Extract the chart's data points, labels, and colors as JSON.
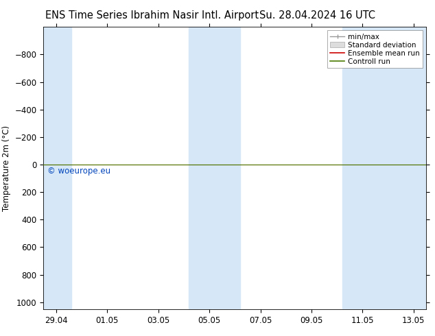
{
  "title_left": "ENS Time Series Ibrahim Nasir Intl. Airport",
  "title_right": "Su. 28.04.2024 16 UTC",
  "ylabel": "Temperature 2m (°C)",
  "watermark": "© woeurope.eu",
  "ylim_bottom": 1050,
  "ylim_top": -1000,
  "yticks": [
    -800,
    -600,
    -400,
    -200,
    0,
    200,
    400,
    600,
    800,
    1000
  ],
  "x_tick_labels": [
    "29.04",
    "01.05",
    "03.05",
    "05.05",
    "07.05",
    "09.05",
    "11.05",
    "13.05"
  ],
  "x_tick_positions": [
    0,
    2,
    4,
    6,
    8,
    10,
    12,
    14
  ],
  "shaded_bands": [
    {
      "xmin": -0.5,
      "xmax": 0.6
    },
    {
      "xmin": 5.2,
      "xmax": 7.2
    },
    {
      "xmin": 11.2,
      "xmax": 14.5
    }
  ],
  "shaded_color": "#d6e8f7",
  "line_y": 0,
  "line_color_green": "#4a7a00",
  "line_color_red": "#cc0000",
  "background_color": "#ffffff",
  "plot_bg_color": "#ffffff",
  "legend_items": [
    {
      "label": "min/max",
      "color": "#999999",
      "type": "errorbar"
    },
    {
      "label": "Standard deviation",
      "color": "#cccccc",
      "type": "bar"
    },
    {
      "label": "Ensemble mean run",
      "color": "#cc0000",
      "type": "line"
    },
    {
      "label": "Controll run",
      "color": "#4a7a00",
      "type": "line"
    }
  ],
  "x_min": -0.5,
  "x_max": 14.5,
  "font_size_title": 10.5,
  "font_size_axis": 8.5,
  "font_size_legend": 7.5,
  "font_size_watermark": 8.5,
  "font_size_ytick": 8.5
}
